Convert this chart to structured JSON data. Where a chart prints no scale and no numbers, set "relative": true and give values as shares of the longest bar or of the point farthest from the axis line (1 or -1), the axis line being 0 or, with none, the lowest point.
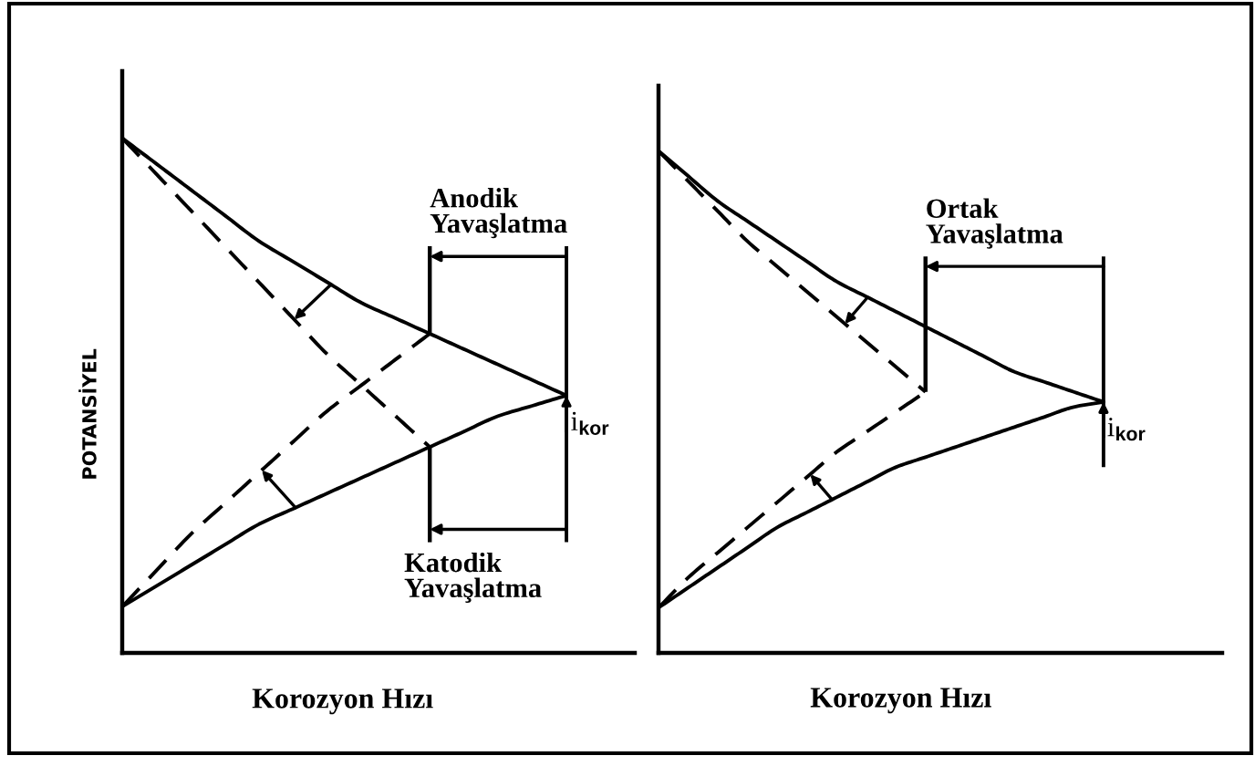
{
  "chart_data": [
    {
      "type": "line",
      "relative": true,
      "tick_labels": false,
      "xlabel": "Korozyon Hızı",
      "ylabel": "POTANSİYEL",
      "categories": [
        null,
        null,
        null,
        null,
        null,
        null,
        null,
        null,
        null,
        null,
        null,
        null,
        null,
        null,
        null,
        null
      ],
      "series": [
        {
          "color": "#000000",
          "line_style": "solid",
          "values": [
            1.0,
            0.95,
            0.9,
            0.85,
            0.8,
            0.76,
            0.72,
            0.68,
            0.65,
            0.62,
            0.59,
            0.56,
            0.53,
            0.5,
            null,
            null
          ]
        },
        {
          "color": "#000000",
          "line_style": "solid",
          "values": [
            0.09,
            0.13,
            0.17,
            0.21,
            0.25,
            0.28,
            0.31,
            0.34,
            0.37,
            0.4,
            0.43,
            0.46,
            0.48,
            0.5,
            null,
            null
          ]
        },
        {
          "color": "#000000",
          "line_style": "dashed",
          "values": [
            1.0,
            0.93,
            0.86,
            0.79,
            0.72,
            0.65,
            0.58,
            0.52,
            0.46,
            0.4,
            null,
            null,
            null,
            null,
            null,
            null
          ]
        },
        {
          "color": "#000000",
          "line_style": "dashed",
          "values": [
            0.09,
            0.16,
            0.23,
            0.29,
            0.35,
            0.41,
            0.47,
            0.52,
            0.57,
            0.62,
            null,
            null,
            null,
            null,
            null,
            null
          ]
        }
      ],
      "annotations": [
        "Anodik\nYavaşlatma",
        "Katodik\nYavaşlatma",
        "i$_{kor}$"
      ]
    },
    {
      "type": "line",
      "relative": true,
      "tick_labels": false,
      "xlabel": "Korozyon Hızı",
      "categories": [
        null,
        null,
        null,
        null,
        null,
        null,
        null,
        null,
        null,
        null,
        null,
        null,
        null,
        null,
        null,
        null,
        null,
        null,
        null,
        null
      ],
      "series": [
        {
          "color": "#000000",
          "line_style": "solid",
          "values": [
            1.0,
            0.95,
            0.9,
            0.86,
            0.82,
            0.78,
            0.74,
            0.71,
            0.68,
            0.65,
            0.62,
            0.59,
            0.56,
            0.54,
            0.52,
            0.5,
            null,
            null,
            null,
            null
          ]
        },
        {
          "color": "#000000",
          "line_style": "solid",
          "values": [
            0.09,
            0.13,
            0.17,
            0.21,
            0.25,
            0.28,
            0.31,
            0.34,
            0.37,
            0.39,
            0.41,
            0.43,
            0.45,
            0.47,
            0.49,
            0.5,
            null,
            null,
            null,
            null
          ]
        },
        {
          "color": "#000000",
          "line_style": "dashed",
          "values": [
            1.0,
            0.94,
            0.88,
            0.82,
            0.77,
            0.72,
            0.67,
            0.62,
            0.57,
            0.52,
            null,
            null,
            null,
            null,
            null,
            null,
            null,
            null,
            null,
            null
          ]
        },
        {
          "color": "#000000",
          "line_style": "dashed",
          "values": [
            0.09,
            0.15,
            0.2,
            0.25,
            0.3,
            0.35,
            0.4,
            0.44,
            0.48,
            0.52,
            null,
            null,
            null,
            null,
            null,
            null,
            null,
            null,
            null,
            null
          ]
        }
      ],
      "annotations": [
        "Ortak\nYavaşlatma",
        "i$_{kor}$"
      ]
    }
  ]
}
